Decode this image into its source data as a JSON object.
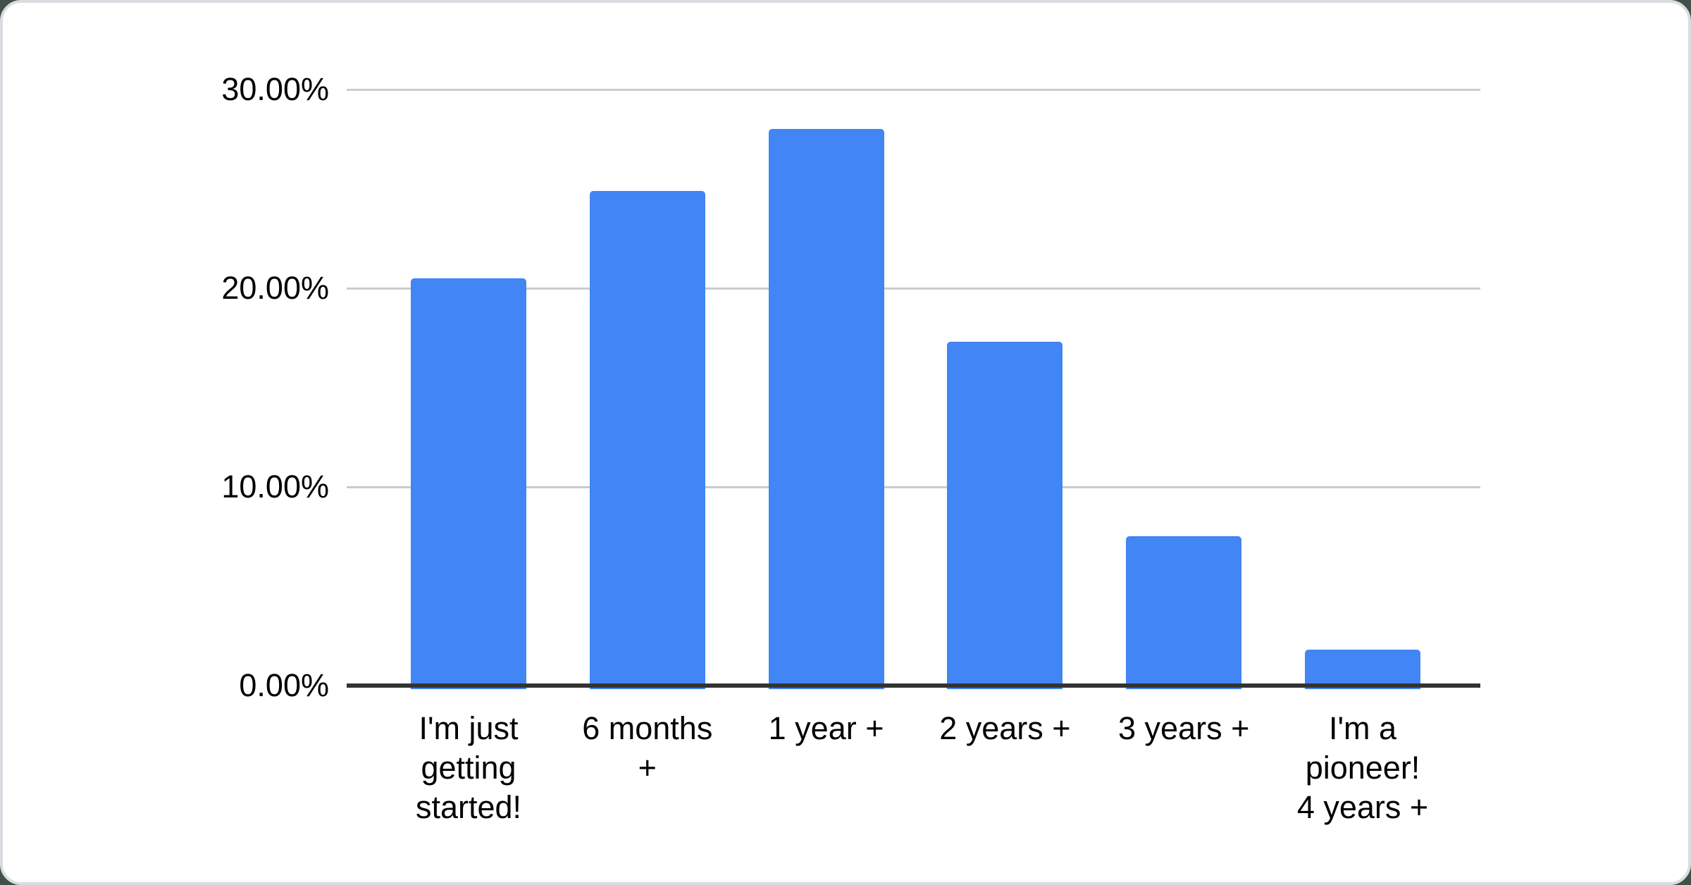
{
  "chart_data": {
    "type": "bar",
    "title": "",
    "xlabel": "",
    "ylabel": "",
    "categories": [
      "I'm just getting started!",
      "6 months +",
      "1 year +",
      "2 years +",
      "3 years +",
      "I'm a pioneer! 4 years +"
    ],
    "category_display_lines": [
      [
        "I'm just",
        "getting",
        "started!"
      ],
      [
        "6 months",
        "+"
      ],
      [
        "1 year +"
      ],
      [
        "2 years +"
      ],
      [
        "3 years +"
      ],
      [
        "I'm a",
        "pioneer!",
        "4 years +"
      ]
    ],
    "values": [
      20.5,
      24.9,
      28.0,
      17.3,
      7.5,
      1.8
    ],
    "value_unit": "percent",
    "ylim": [
      0,
      30
    ],
    "y_ticks": [
      {
        "value": 30,
        "label": "30.00%"
      },
      {
        "value": 20,
        "label": "20.00%"
      },
      {
        "value": 10,
        "label": "10.00%"
      },
      {
        "value": 0,
        "label": "0.00%"
      }
    ],
    "grid": true,
    "legend": "none",
    "colors": {
      "bar": "#4285f4",
      "gridline": "#cccccc",
      "axis_line": "#333333",
      "label_text": "#000000",
      "card_background": "#ffffff",
      "card_border": "#d9dde1",
      "backdrop": "#42504a"
    }
  }
}
